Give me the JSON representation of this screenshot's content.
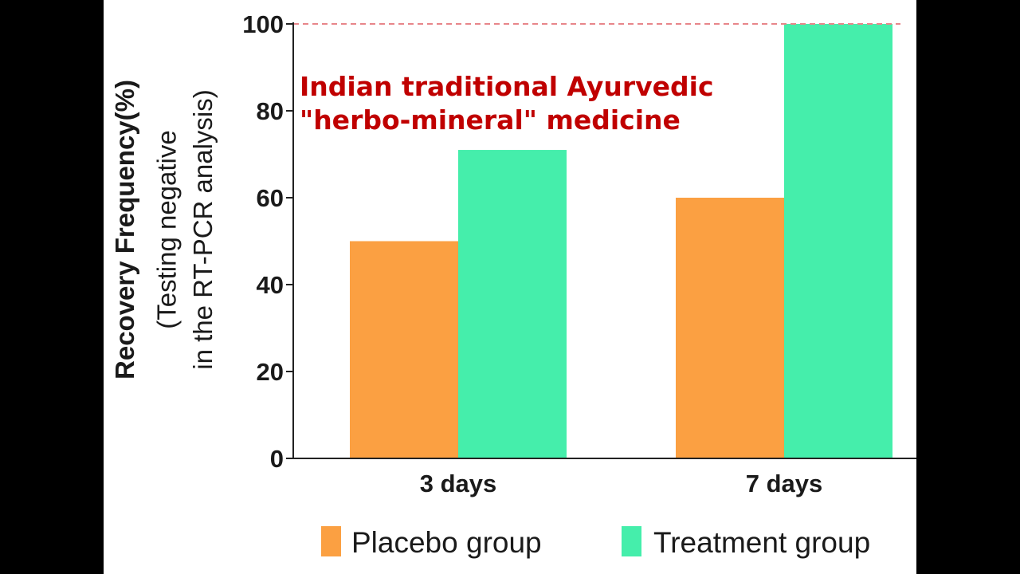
{
  "chart_data": {
    "type": "bar",
    "categories": [
      "3 days",
      "7 days"
    ],
    "series": [
      {
        "name": "Placebo group",
        "color": "#fba042",
        "values": [
          50,
          60
        ]
      },
      {
        "name": "Treatment group",
        "color": "#45eeab",
        "values": [
          71,
          100
        ]
      }
    ],
    "ylim": [
      0,
      100
    ],
    "yticks": [
      "0",
      "20",
      "40",
      "60",
      "80",
      "100"
    ],
    "ylabel_lines": [
      "Recovery Frequency(%)",
      "(Testing negative",
      "in the RT-PCR analysis)"
    ],
    "reference_line": {
      "value": 100,
      "color": "#e8868a",
      "style": "dashed"
    },
    "annotation_lines": [
      "Indian traditional Ayurvedic",
      "\"herbo-mineral\" medicine"
    ],
    "annotation_color": "#c00000",
    "legend_position": "bottom",
    "grid": false
  }
}
